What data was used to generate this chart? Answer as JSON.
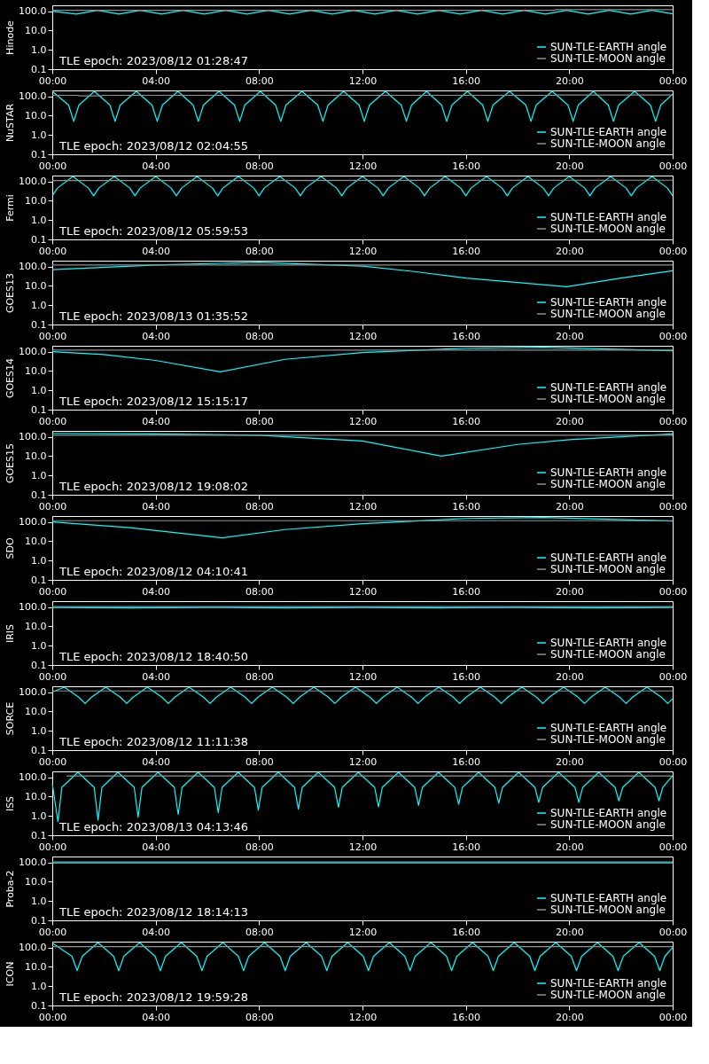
{
  "chart_data": [
    {
      "type": "line",
      "ylabel": "Hinode",
      "annotations": [
        "TLE epoch: 2023/08/12 01:28:47"
      ],
      "xlim": [
        0,
        24
      ],
      "ylim": [
        0.1,
        200
      ],
      "log": true,
      "grid": false,
      "legend": "bottom right",
      "xticks": [
        {
          "value": 0,
          "label": "00:00"
        },
        {
          "value": 4,
          "label": "04:00"
        },
        {
          "value": 8,
          "label": "08:00"
        },
        {
          "value": 12,
          "label": "12:00"
        },
        {
          "value": 16,
          "label": "16:00"
        },
        {
          "value": 20,
          "label": "20:00"
        },
        {
          "value": 24,
          "label": "00:00"
        }
      ],
      "yticks": [
        {
          "value": 0.1,
          "label": "0.1"
        },
        {
          "value": 1,
          "label": "1.0"
        },
        {
          "value": 10,
          "label": "10.0"
        },
        {
          "value": 100,
          "label": "100.0"
        }
      ],
      "series": [
        {
          "name": "SUN-TLE-EARTH angle",
          "color": "#00ffff",
          "x": [
            0,
            0.93,
            1.75,
            2.58,
            3.4,
            4.23,
            5.05,
            5.88,
            6.7,
            7.53,
            8.35,
            9.18,
            10.0,
            10.83,
            11.65,
            12.48,
            13.3,
            14.13,
            14.95,
            15.78,
            16.6,
            17.43,
            18.25,
            19.08,
            19.9,
            20.73,
            21.55,
            22.38,
            23.2,
            24
          ],
          "values": [
            100,
            70,
            110,
            70,
            110,
            70,
            110,
            70,
            110,
            70,
            110,
            70,
            110,
            70,
            110,
            70,
            110,
            70,
            110,
            70,
            110,
            70,
            110,
            70,
            110,
            70,
            110,
            70,
            110,
            72
          ]
        },
        {
          "name": "SUN-TLE-MOON angle",
          "color": "#909090",
          "x": [
            0,
            19.4,
            19.5,
            24
          ],
          "values": [
            110,
            110,
            120,
            120
          ]
        }
      ]
    },
    {
      "type": "line",
      "ylabel": "NuSTAR",
      "annotations": [
        "TLE epoch: 2023/08/12 02:04:55"
      ],
      "xlim": [
        0,
        24
      ],
      "ylim": [
        0.1,
        200
      ],
      "log": true,
      "grid": false,
      "legend": "bottom right",
      "xticks": [
        {
          "value": 0,
          "label": "00:00"
        },
        {
          "value": 4,
          "label": "04:00"
        },
        {
          "value": 8,
          "label": "08:00"
        },
        {
          "value": 12,
          "label": "12:00"
        },
        {
          "value": 16,
          "label": "16:00"
        },
        {
          "value": 20,
          "label": "20:00"
        },
        {
          "value": 24,
          "label": "00:00"
        }
      ],
      "yticks": [
        {
          "value": 0.1,
          "label": "0.1"
        },
        {
          "value": 1,
          "label": "1.0"
        },
        {
          "value": 10,
          "label": "10.0"
        },
        {
          "value": 100,
          "label": "100.0"
        }
      ],
      "series": [
        {
          "name": "SUN-TLE-EARTH angle",
          "color": "#00ffff",
          "x": [
            0,
            0.63,
            0.83,
            1.03,
            1.63,
            2.23,
            2.43,
            2.63,
            3.25,
            3.86,
            4.06,
            4.26,
            4.86,
            5.45,
            5.65,
            5.85,
            6.45,
            7.05,
            7.25,
            7.45,
            8.05,
            8.64,
            8.84,
            9.04,
            9.66,
            10.27,
            10.47,
            10.67,
            11.27,
            11.87,
            12.07,
            12.27,
            12.89,
            13.5,
            13.7,
            13.9,
            14.48,
            15.06,
            15.26,
            15.46,
            16.06,
            16.65,
            16.85,
            17.05,
            17.69,
            18.32,
            18.52,
            18.72,
            19.34,
            19.95,
            20.15,
            20.35,
            20.93,
            21.51,
            21.71,
            21.91,
            22.53,
            23.14,
            23.34,
            23.54,
            24
          ],
          "values": [
            180,
            35,
            5,
            35,
            180,
            35,
            5,
            35,
            180,
            35,
            5,
            35,
            180,
            35,
            5,
            35,
            180,
            35,
            5,
            35,
            180,
            35,
            5,
            35,
            180,
            35,
            5,
            35,
            180,
            35,
            5,
            35,
            180,
            35,
            5,
            35,
            180,
            35,
            5,
            35,
            180,
            35,
            5,
            35,
            180,
            35,
            5,
            35,
            180,
            35,
            5,
            35,
            180,
            35,
            5,
            35,
            180,
            35,
            5,
            35,
            130
          ]
        },
        {
          "name": "SUN-TLE-MOON angle",
          "color": "#909090",
          "x": [
            0,
            1.0,
            1.05,
            1.9,
            1.95,
            19.5,
            19.55,
            24
          ],
          "values": [
            112,
            112,
            104,
            104,
            112,
            112,
            117,
            117
          ]
        }
      ]
    },
    {
      "type": "line",
      "ylabel": "Fermi",
      "annotations": [
        "TLE epoch: 2023/08/12 05:59:53"
      ],
      "xlim": [
        0,
        24
      ],
      "ylim": [
        0.1,
        200
      ],
      "log": true,
      "grid": false,
      "legend": "bottom right",
      "xticks": [
        {
          "value": 0,
          "label": "00:00"
        },
        {
          "value": 4,
          "label": "04:00"
        },
        {
          "value": 8,
          "label": "08:00"
        },
        {
          "value": 12,
          "label": "12:00"
        },
        {
          "value": 16,
          "label": "16:00"
        },
        {
          "value": 20,
          "label": "20:00"
        },
        {
          "value": 24,
          "label": "00:00"
        }
      ],
      "yticks": [
        {
          "value": 0.1,
          "label": "0.1"
        },
        {
          "value": 1,
          "label": "1.0"
        },
        {
          "value": 10,
          "label": "10.0"
        },
        {
          "value": 100,
          "label": "100.0"
        }
      ],
      "series": [
        {
          "name": "SUN-TLE-EARTH angle",
          "color": "#00ffff",
          "x": [
            0,
            0.2,
            0.8,
            1.4,
            1.6,
            1.8,
            2.4,
            3.0,
            3.2,
            3.4,
            4.0,
            4.6,
            4.8,
            5.0,
            5.6,
            6.2,
            6.4,
            6.6,
            7.2,
            7.8,
            8.0,
            8.2,
            8.8,
            9.4,
            9.6,
            9.8,
            10.4,
            11.0,
            11.2,
            11.4,
            12.0,
            12.6,
            12.8,
            13.0,
            13.6,
            14.2,
            14.4,
            14.6,
            15.2,
            15.8,
            16.0,
            16.2,
            16.8,
            17.4,
            17.6,
            17.8,
            18.4,
            19.0,
            19.2,
            19.4,
            20.0,
            20.6,
            20.8,
            21.0,
            21.6,
            22.2,
            22.4,
            22.6,
            23.2,
            23.8,
            24
          ],
          "values": [
            18,
            45,
            180,
            45,
            18,
            45,
            180,
            45,
            18,
            45,
            180,
            45,
            18,
            45,
            180,
            45,
            18,
            45,
            180,
            45,
            18,
            45,
            180,
            45,
            18,
            45,
            180,
            45,
            18,
            45,
            180,
            45,
            18,
            45,
            180,
            45,
            18,
            45,
            180,
            45,
            18,
            45,
            180,
            45,
            18,
            45,
            180,
            45,
            18,
            45,
            180,
            45,
            18,
            45,
            180,
            45,
            18,
            45,
            180,
            45,
            18
          ]
        },
        {
          "name": "SUN-TLE-MOON angle",
          "color": "#909090",
          "x": [
            0,
            24
          ],
          "values": [
            110,
            115
          ]
        }
      ]
    },
    {
      "type": "line",
      "ylabel": "GOES13",
      "annotations": [
        "TLE epoch: 2023/08/13 01:35:52"
      ],
      "xlim": [
        0,
        24
      ],
      "ylim": [
        0.1,
        200
      ],
      "log": true,
      "grid": false,
      "legend": "bottom right",
      "xticks": [
        {
          "value": 0,
          "label": "00:00"
        },
        {
          "value": 4,
          "label": "04:00"
        },
        {
          "value": 8,
          "label": "08:00"
        },
        {
          "value": 12,
          "label": "12:00"
        },
        {
          "value": 16,
          "label": "16:00"
        },
        {
          "value": 20,
          "label": "20:00"
        },
        {
          "value": 24,
          "label": "00:00"
        }
      ],
      "yticks": [
        {
          "value": 0.1,
          "label": "0.1"
        },
        {
          "value": 1,
          "label": "1.0"
        },
        {
          "value": 10,
          "label": "10.0"
        },
        {
          "value": 100,
          "label": "100.0"
        }
      ],
      "series": [
        {
          "name": "SUN-TLE-EARTH angle",
          "color": "#00ffff",
          "x": [
            0,
            4,
            8,
            12,
            14,
            16,
            18,
            19.9,
            22,
            24
          ],
          "values": [
            69,
            120,
            165,
            105,
            55,
            25,
            15,
            9,
            25,
            60
          ]
        },
        {
          "name": "SUN-TLE-MOON angle",
          "color": "#909090",
          "x": [
            0,
            24
          ],
          "values": [
            120,
            120
          ]
        }
      ]
    },
    {
      "type": "line",
      "ylabel": "GOES14",
      "annotations": [
        "TLE epoch: 2023/08/12 15:15:17"
      ],
      "xlim": [
        0,
        24
      ],
      "ylim": [
        0.1,
        200
      ],
      "log": true,
      "grid": false,
      "legend": "bottom right",
      "xticks": [
        {
          "value": 0,
          "label": "00:00"
        },
        {
          "value": 4,
          "label": "04:00"
        },
        {
          "value": 8,
          "label": "08:00"
        },
        {
          "value": 12,
          "label": "12:00"
        },
        {
          "value": 16,
          "label": "16:00"
        },
        {
          "value": 20,
          "label": "20:00"
        },
        {
          "value": 24,
          "label": "00:00"
        }
      ],
      "yticks": [
        {
          "value": 0.1,
          "label": "0.1"
        },
        {
          "value": 1,
          "label": "1.0"
        },
        {
          "value": 10,
          "label": "10.0"
        },
        {
          "value": 100,
          "label": "100.0"
        }
      ],
      "series": [
        {
          "name": "SUN-TLE-EARTH angle",
          "color": "#00ffff",
          "x": [
            0,
            2,
            4,
            6.5,
            9,
            12,
            16,
            19,
            24
          ],
          "values": [
            100,
            70,
            35,
            9,
            40,
            90,
            150,
            170,
            110
          ]
        },
        {
          "name": "SUN-TLE-MOON angle",
          "color": "#909090",
          "x": [
            0,
            24
          ],
          "values": [
            120,
            120
          ]
        }
      ]
    },
    {
      "type": "line",
      "ylabel": "GOES15",
      "annotations": [
        "TLE epoch: 2023/08/12 19:08:02"
      ],
      "xlim": [
        0,
        24
      ],
      "ylim": [
        0.1,
        200
      ],
      "log": true,
      "grid": false,
      "legend": "bottom right",
      "xticks": [
        {
          "value": 0,
          "label": "00:00"
        },
        {
          "value": 4,
          "label": "04:00"
        },
        {
          "value": 8,
          "label": "08:00"
        },
        {
          "value": 12,
          "label": "12:00"
        },
        {
          "value": 16,
          "label": "16:00"
        },
        {
          "value": 20,
          "label": "20:00"
        },
        {
          "value": 24,
          "label": "00:00"
        }
      ],
      "yticks": [
        {
          "value": 0.1,
          "label": "0.1"
        },
        {
          "value": 1,
          "label": "1.0"
        },
        {
          "value": 10,
          "label": "10.0"
        },
        {
          "value": 100,
          "label": "100.0"
        }
      ],
      "series": [
        {
          "name": "SUN-TLE-EARTH angle",
          "color": "#00ffff",
          "x": [
            0,
            4,
            8,
            12,
            15.05,
            18,
            20,
            24
          ],
          "values": [
            150,
            140,
            120,
            60,
            10,
            40,
            70,
            140
          ]
        },
        {
          "name": "SUN-TLE-MOON angle",
          "color": "#909090",
          "x": [
            0,
            24
          ],
          "values": [
            120,
            120
          ]
        }
      ]
    },
    {
      "type": "line",
      "ylabel": "SDO",
      "annotations": [
        "TLE epoch: 2023/08/12 04:10:41"
      ],
      "xlim": [
        0,
        24
      ],
      "ylim": [
        0.1,
        200
      ],
      "log": true,
      "grid": false,
      "legend": "bottom right",
      "xticks": [
        {
          "value": 0,
          "label": "00:00"
        },
        {
          "value": 4,
          "label": "04:00"
        },
        {
          "value": 8,
          "label": "08:00"
        },
        {
          "value": 12,
          "label": "12:00"
        },
        {
          "value": 16,
          "label": "16:00"
        },
        {
          "value": 20,
          "label": "20:00"
        },
        {
          "value": 24,
          "label": "00:00"
        }
      ],
      "yticks": [
        {
          "value": 0.1,
          "label": "0.1"
        },
        {
          "value": 1,
          "label": "1.0"
        },
        {
          "value": 10,
          "label": "10.0"
        },
        {
          "value": 100,
          "label": "100.0"
        }
      ],
      "series": [
        {
          "name": "SUN-TLE-EARTH angle",
          "color": "#00ffff",
          "x": [
            0,
            3,
            6.6,
            9,
            12,
            16,
            19,
            24
          ],
          "values": [
            100,
            50,
            15,
            40,
            80,
            150,
            170,
            110
          ]
        },
        {
          "name": "SUN-TLE-MOON angle",
          "color": "#909090",
          "x": [
            0,
            24
          ],
          "values": [
            115,
            115
          ]
        }
      ]
    },
    {
      "type": "line",
      "ylabel": "IRIS",
      "annotations": [
        "TLE epoch: 2023/08/12 18:40:50"
      ],
      "xlim": [
        0,
        24
      ],
      "ylim": [
        0.1,
        200
      ],
      "log": true,
      "grid": false,
      "legend": "bottom right",
      "xticks": [
        {
          "value": 0,
          "label": "00:00"
        },
        {
          "value": 4,
          "label": "04:00"
        },
        {
          "value": 8,
          "label": "08:00"
        },
        {
          "value": 12,
          "label": "12:00"
        },
        {
          "value": 16,
          "label": "16:00"
        },
        {
          "value": 20,
          "label": "20:00"
        },
        {
          "value": 24,
          "label": "00:00"
        }
      ],
      "yticks": [
        {
          "value": 0.1,
          "label": "0.1"
        },
        {
          "value": 1,
          "label": "1.0"
        },
        {
          "value": 10,
          "label": "10.0"
        },
        {
          "value": 100,
          "label": "100.0"
        }
      ],
      "series": [
        {
          "name": "SUN-TLE-EARTH angle",
          "color": "#00ffff",
          "x": [
            0,
            3,
            6,
            9,
            12,
            15,
            18,
            21,
            24
          ],
          "values": [
            95,
            90,
            95,
            90,
            95,
            90,
            95,
            90,
            95
          ]
        },
        {
          "name": "SUN-TLE-MOON angle",
          "color": "#909090",
          "x": [
            0,
            24
          ],
          "values": [
            105,
            105
          ]
        }
      ]
    },
    {
      "type": "line",
      "ylabel": "SORCE",
      "annotations": [
        "TLE epoch: 2023/08/12 11:11:38"
      ],
      "xlim": [
        0,
        24
      ],
      "ylim": [
        0.1,
        200
      ],
      "log": true,
      "grid": false,
      "legend": "bottom right",
      "xticks": [
        {
          "value": 0,
          "label": "00:00"
        },
        {
          "value": 4,
          "label": "04:00"
        },
        {
          "value": 8,
          "label": "08:00"
        },
        {
          "value": 12,
          "label": "12:00"
        },
        {
          "value": 16,
          "label": "16:00"
        },
        {
          "value": 20,
          "label": "20:00"
        },
        {
          "value": 24,
          "label": "00:00"
        }
      ],
      "yticks": [
        {
          "value": 0.1,
          "label": "0.1"
        },
        {
          "value": 1,
          "label": "1.0"
        },
        {
          "value": 10,
          "label": "10.0"
        },
        {
          "value": 100,
          "label": "100.0"
        }
      ],
      "series": [
        {
          "name": "SUN-TLE-EARTH angle",
          "color": "#00ffff",
          "x": [
            0,
            0.47,
            1.02,
            1.27,
            1.52,
            2.07,
            2.63,
            2.88,
            3.13,
            3.68,
            4.24,
            4.49,
            4.74,
            5.29,
            5.85,
            6.1,
            6.35,
            6.9,
            7.46,
            7.71,
            7.96,
            8.51,
            9.07,
            9.32,
            9.57,
            10.12,
            10.68,
            10.93,
            11.18,
            11.73,
            12.29,
            12.54,
            12.79,
            13.34,
            13.9,
            14.15,
            14.4,
            14.95,
            15.51,
            15.76,
            16.01,
            16.56,
            17.12,
            17.37,
            17.62,
            18.17,
            18.73,
            18.98,
            19.23,
            19.78,
            20.34,
            20.59,
            20.84,
            21.39,
            21.95,
            22.2,
            22.45,
            23.0,
            23.56,
            23.81,
            24
          ],
          "values": [
            100,
            180,
            55,
            26,
            55,
            180,
            55,
            26,
            55,
            180,
            55,
            26,
            55,
            180,
            55,
            26,
            55,
            180,
            55,
            26,
            55,
            180,
            55,
            26,
            55,
            180,
            55,
            26,
            55,
            180,
            55,
            26,
            55,
            180,
            55,
            26,
            55,
            180,
            55,
            26,
            55,
            180,
            55,
            26,
            55,
            180,
            55,
            26,
            55,
            180,
            55,
            26,
            55,
            180,
            55,
            26,
            55,
            180,
            55,
            26,
            45
          ]
        },
        {
          "name": "SUN-TLE-MOON angle",
          "color": "#909090",
          "x": [
            0,
            24
          ],
          "values": [
            115,
            115
          ]
        }
      ]
    },
    {
      "type": "line",
      "ylabel": "ISS",
      "annotations": [
        "TLE epoch: 2023/08/13 04:13:46"
      ],
      "xlim": [
        0,
        24
      ],
      "ylim": [
        0.1,
        200
      ],
      "log": true,
      "grid": false,
      "legend": "bottom right",
      "xticks": [
        {
          "value": 0,
          "label": "00:00"
        },
        {
          "value": 4,
          "label": "04:00"
        },
        {
          "value": 8,
          "label": "08:00"
        },
        {
          "value": 12,
          "label": "12:00"
        },
        {
          "value": 16,
          "label": "16:00"
        },
        {
          "value": 20,
          "label": "20:00"
        },
        {
          "value": 24,
          "label": "00:00"
        }
      ],
      "yticks": [
        {
          "value": 0.1,
          "label": "0.1"
        },
        {
          "value": 1,
          "label": "1.0"
        },
        {
          "value": 10,
          "label": "10.0"
        },
        {
          "value": 100,
          "label": "100.0"
        }
      ],
      "series": [
        {
          "name": "SUN-TLE-EARTH angle",
          "color": "#00ffff",
          "x": [
            0,
            0.22,
            0.37,
            0.99,
            1.62,
            1.77,
            1.92,
            2.54,
            3.17,
            3.32,
            3.47,
            4.09,
            4.72,
            4.87,
            5.02,
            5.64,
            6.27,
            6.42,
            6.57,
            7.19,
            7.82,
            7.97,
            8.12,
            8.74,
            9.37,
            9.52,
            9.67,
            10.29,
            10.92,
            11.07,
            11.22,
            11.84,
            12.47,
            12.62,
            12.77,
            13.39,
            14.02,
            14.17,
            14.32,
            14.94,
            15.57,
            15.72,
            15.87,
            16.49,
            17.12,
            17.27,
            17.42,
            18.04,
            18.67,
            18.82,
            18.97,
            19.59,
            20.22,
            20.37,
            20.52,
            21.14,
            21.77,
            21.92,
            22.07,
            22.69,
            23.32,
            23.47,
            23.62,
            24
          ],
          "values": [
            48,
            0.5,
            30,
            180,
            30,
            0.6,
            30,
            180,
            30,
            0.85,
            30,
            180,
            30,
            1.2,
            30,
            180,
            30,
            1.5,
            30,
            180,
            30,
            2,
            30,
            180,
            30,
            2.2,
            30,
            180,
            30,
            2.8,
            30,
            180,
            30,
            3,
            30,
            180,
            30,
            3.5,
            30,
            180,
            30,
            4,
            30,
            180,
            30,
            4.5,
            30,
            180,
            30,
            5,
            30,
            180,
            30,
            5,
            30,
            180,
            30,
            6,
            30,
            180,
            30,
            6,
            30,
            120
          ]
        },
        {
          "name": "SUN-TLE-MOON angle",
          "color": "#909090",
          "x": [
            0.55,
            24
          ],
          "values": [
            117,
            117
          ]
        }
      ]
    },
    {
      "type": "line",
      "ylabel": "Proba-2",
      "annotations": [
        "TLE epoch: 2023/08/12 18:14:13"
      ],
      "xlim": [
        0,
        24
      ],
      "ylim": [
        0.1,
        200
      ],
      "log": true,
      "grid": false,
      "legend": "bottom right",
      "xticks": [
        {
          "value": 0,
          "label": "00:00"
        },
        {
          "value": 4,
          "label": "04:00"
        },
        {
          "value": 8,
          "label": "08:00"
        },
        {
          "value": 12,
          "label": "12:00"
        },
        {
          "value": 16,
          "label": "16:00"
        },
        {
          "value": 20,
          "label": "20:00"
        },
        {
          "value": 24,
          "label": "00:00"
        }
      ],
      "yticks": [
        {
          "value": 0.1,
          "label": "0.1"
        },
        {
          "value": 1,
          "label": "1.0"
        },
        {
          "value": 10,
          "label": "10.0"
        },
        {
          "value": 100,
          "label": "100.0"
        }
      ],
      "series": [
        {
          "name": "SUN-TLE-EARTH angle",
          "color": "#00ffff",
          "x": [
            0,
            24
          ],
          "values": [
            95,
            95
          ]
        },
        {
          "name": "SUN-TLE-MOON angle",
          "color": "#909090",
          "x": [
            0,
            24
          ],
          "values": [
            105,
            105
          ]
        }
      ]
    },
    {
      "type": "line",
      "ylabel": "ICON",
      "annotations": [
        "TLE epoch: 2023/08/12 19:59:28"
      ],
      "xlim": [
        0,
        24
      ],
      "ylim": [
        0.1,
        200
      ],
      "log": true,
      "grid": false,
      "legend": "bottom right",
      "xticks": [
        {
          "value": 0,
          "label": "00:00"
        },
        {
          "value": 4,
          "label": "04:00"
        },
        {
          "value": 8,
          "label": "08:00"
        },
        {
          "value": 12,
          "label": "12:00"
        },
        {
          "value": 16,
          "label": "16:00"
        },
        {
          "value": 20,
          "label": "20:00"
        },
        {
          "value": 24,
          "label": "00:00"
        }
      ],
      "yticks": [
        {
          "value": 0.1,
          "label": "0.1"
        },
        {
          "value": 1,
          "label": "1.0"
        },
        {
          "value": 10,
          "label": "10.0"
        },
        {
          "value": 100,
          "label": "100.0"
        }
      ],
      "series": [
        {
          "name": "SUN-TLE-EARTH angle",
          "color": "#00ffff",
          "x": [
            0,
            0.76,
            0.96,
            1.16,
            1.77,
            2.37,
            2.57,
            2.77,
            3.38,
            3.98,
            4.18,
            4.38,
            4.99,
            5.59,
            5.79,
            5.99,
            6.6,
            7.2,
            7.4,
            7.6,
            8.21,
            8.81,
            9.01,
            9.21,
            9.82,
            10.42,
            10.62,
            10.82,
            11.43,
            12.03,
            12.23,
            12.43,
            13.04,
            13.64,
            13.84,
            14.04,
            14.65,
            15.25,
            15.45,
            15.65,
            16.26,
            16.86,
            17.06,
            17.26,
            17.87,
            18.47,
            18.67,
            18.87,
            19.48,
            20.08,
            20.28,
            20.48,
            21.09,
            21.69,
            21.89,
            22.09,
            22.7,
            23.3,
            23.5,
            23.7,
            24
          ],
          "values": [
            170,
            35,
            6.3,
            35,
            180,
            35,
            6.3,
            35,
            180,
            35,
            6.3,
            35,
            180,
            35,
            6.3,
            35,
            180,
            35,
            6.3,
            35,
            180,
            35,
            6.3,
            35,
            180,
            35,
            6.3,
            35,
            180,
            35,
            6.3,
            35,
            180,
            35,
            6.3,
            35,
            180,
            35,
            6.3,
            35,
            180,
            35,
            6.3,
            35,
            180,
            35,
            6.3,
            35,
            180,
            35,
            6.3,
            35,
            180,
            35,
            6.3,
            35,
            180,
            35,
            6.3,
            35,
            100
          ]
        },
        {
          "name": "SUN-TLE-MOON angle",
          "color": "#909090",
          "x": [
            0,
            24
          ],
          "values": [
            110,
            110
          ]
        }
      ]
    }
  ]
}
